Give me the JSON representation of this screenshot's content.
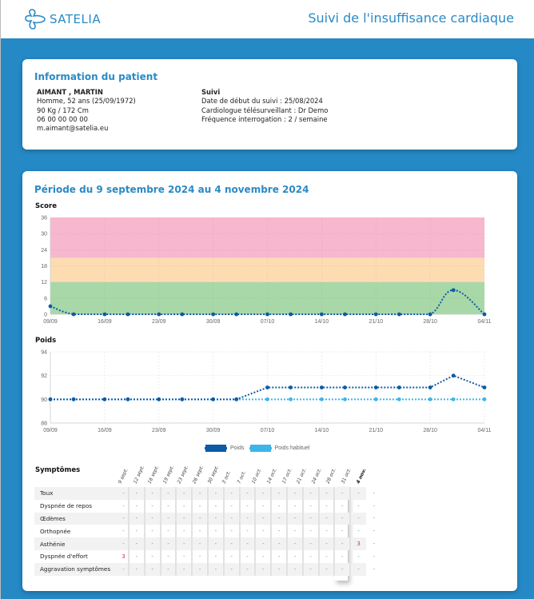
{
  "header": {
    "logo_text": "SATELIA",
    "title": "Suivi de l'insuffisance cardiaque"
  },
  "patient": {
    "section_title": "Information du patient",
    "name": "AIMANT , MARTIN",
    "details": [
      "Homme, 52 ans (25/09/1972)",
      "90 Kg / 172 Cm",
      "06 00 00 00 00",
      "m.aimant@satelia.eu"
    ]
  },
  "follow_up": {
    "title": "Suivi",
    "lines": [
      "Date de début du suivi  : 25/08/2024",
      "Cardiologue télésurveillant : Dr Demo",
      "Fréquence interrogation  : 2 / semaine"
    ]
  },
  "period": {
    "title": "Période du 9 septembre 2024 au 4 novembre 2024"
  },
  "colors": {
    "brand": "#2a8ac6",
    "background": "#2589c5",
    "zone_green": "#a8d8a8",
    "zone_orange": "#fddcb2",
    "zone_pink": "#f7b8cf",
    "series_dark": "#0d5aa7",
    "series_light": "#3db5e8",
    "alert": "#e0245e"
  },
  "chart_data": [
    {
      "type": "line",
      "title": "Score",
      "x": [
        "09/09",
        "12/09",
        "16/09",
        "19/09",
        "23/09",
        "26/09",
        "30/09",
        "03/10",
        "07/10",
        "10/10",
        "14/10",
        "17/10",
        "21/10",
        "24/10",
        "28/10",
        "31/10",
        "04/11"
      ],
      "x_days": [
        0,
        3,
        7,
        10,
        14,
        17,
        21,
        24,
        28,
        31,
        35,
        38,
        42,
        45,
        49,
        52,
        56
      ],
      "xticks": [
        "09/09",
        "16/09",
        "23/09",
        "30/09",
        "07/10",
        "14/10",
        "21/10",
        "28/10",
        "04/11"
      ],
      "xtick_days": [
        0,
        7,
        14,
        21,
        28,
        35,
        42,
        49,
        56
      ],
      "series": [
        {
          "name": "Score",
          "values": [
            3,
            0,
            0,
            0,
            0,
            0,
            0,
            0,
            0,
            0,
            0,
            0,
            0,
            0,
            0,
            9,
            0
          ]
        }
      ],
      "ylim": [
        0,
        36
      ],
      "yticks": [
        0,
        6,
        12,
        18,
        24,
        30,
        36
      ],
      "zones": [
        {
          "from": 0,
          "to": 12,
          "color": "green"
        },
        {
          "from": 12,
          "to": 21,
          "color": "orange"
        },
        {
          "from": 21,
          "to": 36,
          "color": "pink"
        }
      ],
      "grid": true
    },
    {
      "type": "line",
      "title": "Poids",
      "x": [
        "09/09",
        "12/09",
        "16/09",
        "19/09",
        "23/09",
        "26/09",
        "30/09",
        "03/10",
        "07/10",
        "10/10",
        "14/10",
        "17/10",
        "21/10",
        "24/10",
        "28/10",
        "31/10",
        "04/11"
      ],
      "x_days": [
        0,
        3,
        7,
        10,
        14,
        17,
        21,
        24,
        28,
        31,
        35,
        38,
        42,
        45,
        49,
        52,
        56
      ],
      "xticks": [
        "09/09",
        "16/09",
        "23/09",
        "30/09",
        "07/10",
        "14/10",
        "21/10",
        "28/10",
        "04/11"
      ],
      "xtick_days": [
        0,
        7,
        14,
        21,
        28,
        35,
        42,
        49,
        56
      ],
      "series": [
        {
          "name": "Poids",
          "values": [
            90,
            90,
            90,
            90,
            90,
            90,
            90,
            90,
            91,
            91,
            91,
            91,
            91,
            91,
            91,
            92,
            91
          ]
        },
        {
          "name": "Poids habituel",
          "values": [
            90,
            90,
            90,
            90,
            90,
            90,
            90,
            90,
            90,
            90,
            90,
            90,
            90,
            90,
            90,
            90,
            90
          ]
        }
      ],
      "ylim": [
        88,
        94
      ],
      "yticks": [
        88,
        90,
        92,
        94
      ],
      "legend": "bottom-center",
      "grid": true
    }
  ],
  "symptoms": {
    "title": "Symptômes",
    "columns": [
      "9 sept.",
      "12 sept.",
      "16 sept.",
      "19 sept.",
      "23 sept.",
      "26 sept.",
      "30 sept.",
      "3 oct.",
      "7 oct.",
      "10 oct.",
      "14 oct.",
      "17 oct.",
      "21 oct.",
      "24 oct.",
      "28 oct.",
      "31 oct.",
      "4 nov."
    ],
    "rows": [
      {
        "name": "Toux",
        "values": [
          "-",
          "-",
          "-",
          "-",
          "-",
          "-",
          "-",
          "-",
          "-",
          "-",
          "-",
          "-",
          "-",
          "-",
          "-",
          "-",
          "-"
        ]
      },
      {
        "name": "Dyspnée de repos",
        "values": [
          "-",
          "-",
          "-",
          "-",
          "-",
          "-",
          "-",
          "-",
          "-",
          "-",
          "-",
          "-",
          "-",
          "-",
          "-",
          "-",
          "-"
        ]
      },
      {
        "name": "Œdèmes",
        "values": [
          "-",
          "-",
          "-",
          "-",
          "-",
          "-",
          "-",
          "-",
          "-",
          "-",
          "-",
          "-",
          "-",
          "-",
          "-",
          "-",
          "-"
        ]
      },
      {
        "name": "Orthopnée",
        "values": [
          "-",
          "-",
          "-",
          "-",
          "-",
          "-",
          "-",
          "-",
          "-",
          "-",
          "-",
          "-",
          "-",
          "-",
          "-",
          "-",
          "-"
        ]
      },
      {
        "name": "Asthénie",
        "values": [
          "-",
          "-",
          "-",
          "-",
          "-",
          "-",
          "-",
          "-",
          "-",
          "-",
          "-",
          "-",
          "-",
          "-",
          "-",
          "3",
          "-"
        ]
      },
      {
        "name": "Dyspnée d'effort",
        "values": [
          "3",
          "-",
          "-",
          "-",
          "-",
          "-",
          "-",
          "-",
          "-",
          "-",
          "-",
          "-",
          "-",
          "-",
          "-",
          "-",
          "-"
        ]
      },
      {
        "name": "Aggravation symptômes",
        "values": [
          "-",
          "-",
          "-",
          "-",
          "-",
          "-",
          "-",
          "-",
          "-",
          "-",
          "-",
          "-",
          "-",
          "-",
          "-",
          "-",
          "-"
        ]
      }
    ]
  }
}
